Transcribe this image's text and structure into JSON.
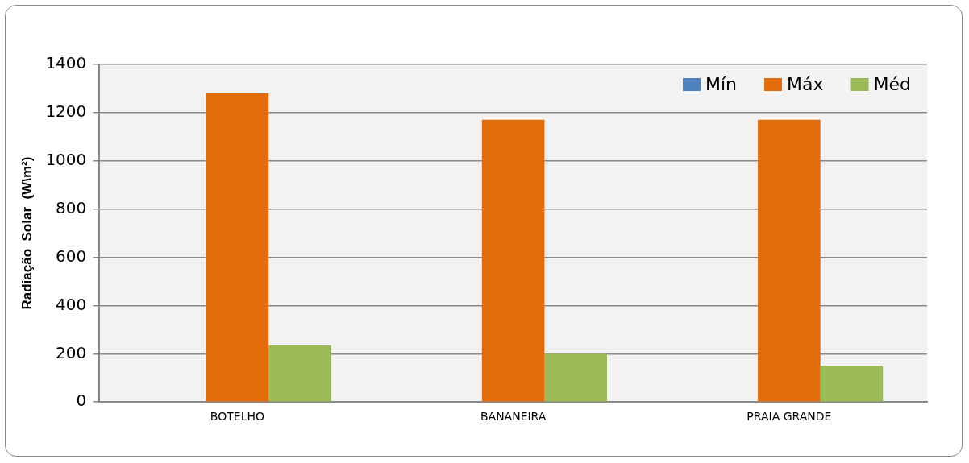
{
  "chart_data": {
    "type": "bar",
    "ylabel": "Radiação  Solar  (W\\m²)",
    "categories": [
      "BOTELHO",
      "BANANEIRA",
      "PRAIA GRANDE"
    ],
    "series": [
      {
        "name": "Mín",
        "color": "#4f81bd",
        "values": [
          0,
          0,
          0
        ]
      },
      {
        "name": "Máx",
        "color": "#e36c0a",
        "values": [
          1280,
          1170,
          1170
        ]
      },
      {
        "name": "Méd",
        "color": "#9bbb59",
        "values": [
          235,
          200,
          150
        ]
      }
    ],
    "ylim": [
      0,
      1400
    ],
    "yticks": [
      0,
      200,
      400,
      600,
      800,
      1000,
      1200,
      1400
    ],
    "grid": "y",
    "legend": "top right"
  }
}
